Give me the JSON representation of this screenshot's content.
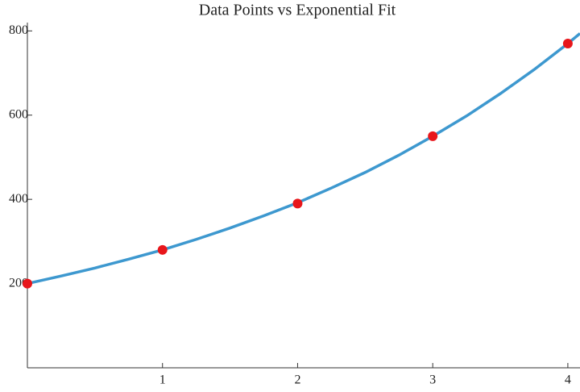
{
  "chart_data": {
    "type": "scatter",
    "title": "Data Points vs Exponential Fit",
    "xlim": [
      0,
      4.09
    ],
    "ylim": [
      0,
      815
    ],
    "xticks": [
      1,
      2,
      3,
      4
    ],
    "yticks": [
      200,
      400,
      600,
      800
    ],
    "series": [
      {
        "type": "line",
        "color": "#3d98cf",
        "x": [
          0,
          0.25,
          0.5,
          0.75,
          1,
          1.25,
          1.5,
          1.75,
          2,
          2.25,
          2.5,
          2.75,
          3,
          3.25,
          3.5,
          3.75,
          4,
          4.09
        ],
        "values": [
          200,
          218,
          237,
          258,
          280,
          305,
          332,
          361,
          392,
          427,
          464,
          505,
          550,
          598,
          651,
          708,
          770,
          794
        ]
      },
      {
        "type": "scatter",
        "color": "#e8161b",
        "x": [
          0,
          1,
          2,
          3,
          4
        ],
        "values": [
          200,
          280,
          390,
          550,
          770
        ]
      }
    ]
  }
}
